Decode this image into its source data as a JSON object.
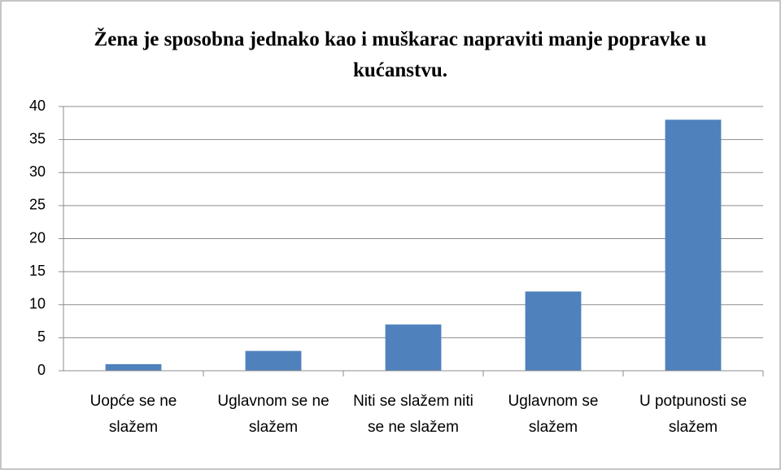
{
  "chart_data": {
    "type": "bar",
    "title": "Žena je sposobna jednako kao i muškarac napraviti manje popravke u kućanstvu.",
    "categories": [
      "Uopće se ne slažem",
      "Uglavnom se ne slažem",
      "Niti se slažem niti se ne slažem",
      "Uglavnom se slažem",
      "U potpunosti se slažem"
    ],
    "values": [
      1,
      3,
      7,
      12,
      38
    ],
    "color": "#4f81bd",
    "ylim": [
      0,
      40
    ],
    "yticks": [
      0,
      5,
      10,
      15,
      20,
      25,
      30,
      35,
      40
    ],
    "grid": true
  }
}
